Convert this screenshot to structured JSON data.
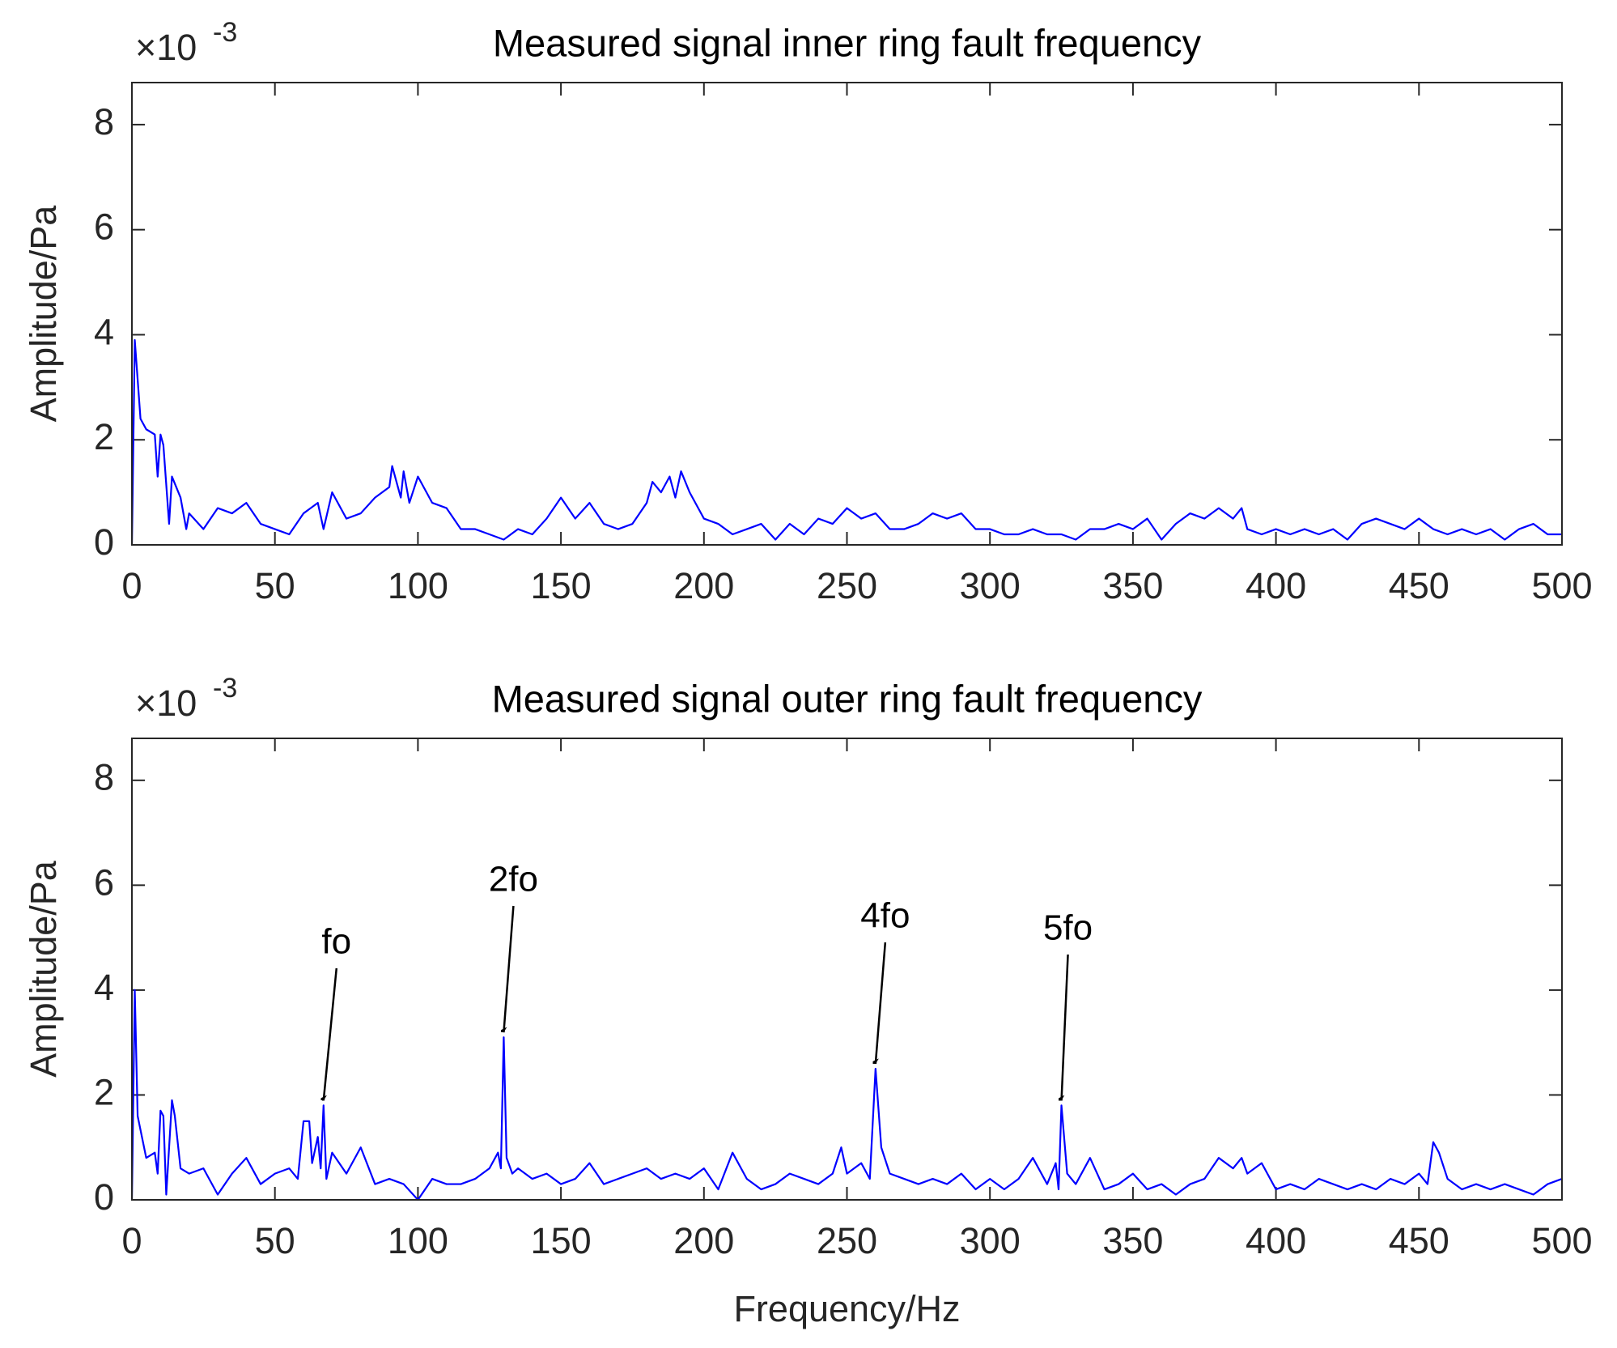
{
  "chart_data": [
    {
      "type": "line",
      "title": "Measured signal inner ring fault frequency",
      "ylabel": "Amplitude/Pa",
      "y_exponent": {
        "base": "×10",
        "exponent": "-3"
      },
      "xlim": [
        0,
        500
      ],
      "ylim": [
        0,
        8.8
      ],
      "xticks": [
        0,
        50,
        100,
        150,
        200,
        250,
        300,
        350,
        400,
        450,
        500
      ],
      "yticks": [
        0,
        2,
        4,
        6,
        8
      ],
      "color": "#0000ff",
      "x": [
        0,
        1,
        3,
        5,
        8,
        9,
        10,
        11,
        13,
        14,
        17,
        19,
        20,
        25,
        30,
        35,
        40,
        45,
        50,
        55,
        60,
        65,
        67,
        70,
        75,
        80,
        85,
        90,
        91,
        94,
        95,
        97,
        100,
        105,
        110,
        115,
        120,
        125,
        130,
        135,
        140,
        145,
        150,
        155,
        160,
        165,
        170,
        175,
        180,
        182,
        185,
        188,
        190,
        192,
        195,
        200,
        205,
        210,
        215,
        220,
        225,
        230,
        235,
        240,
        245,
        250,
        255,
        260,
        265,
        270,
        275,
        280,
        285,
        290,
        295,
        300,
        305,
        310,
        315,
        320,
        325,
        330,
        335,
        340,
        345,
        350,
        355,
        360,
        365,
        370,
        375,
        380,
        385,
        388,
        390,
        395,
        400,
        405,
        410,
        415,
        420,
        425,
        430,
        435,
        440,
        445,
        450,
        455,
        460,
        465,
        470,
        475,
        480,
        485,
        490,
        495,
        500
      ],
      "values": [
        0,
        3.9,
        2.4,
        2.2,
        2.1,
        1.3,
        2.1,
        1.9,
        0.4,
        1.3,
        0.9,
        0.3,
        0.6,
        0.3,
        0.7,
        0.6,
        0.8,
        0.4,
        0.3,
        0.2,
        0.6,
        0.8,
        0.3,
        1.0,
        0.5,
        0.6,
        0.9,
        1.1,
        1.5,
        0.9,
        1.4,
        0.8,
        1.3,
        0.8,
        0.7,
        0.3,
        0.3,
        0.2,
        0.1,
        0.3,
        0.2,
        0.5,
        0.9,
        0.5,
        0.8,
        0.4,
        0.3,
        0.4,
        0.8,
        1.2,
        1.0,
        1.3,
        0.9,
        1.4,
        1.0,
        0.5,
        0.4,
        0.2,
        0.3,
        0.4,
        0.1,
        0.4,
        0.2,
        0.5,
        0.4,
        0.7,
        0.5,
        0.6,
        0.3,
        0.3,
        0.4,
        0.6,
        0.5,
        0.6,
        0.3,
        0.3,
        0.2,
        0.2,
        0.3,
        0.2,
        0.2,
        0.1,
        0.3,
        0.3,
        0.4,
        0.3,
        0.5,
        0.1,
        0.4,
        0.6,
        0.5,
        0.7,
        0.5,
        0.7,
        0.3,
        0.2,
        0.3,
        0.2,
        0.3,
        0.2,
        0.3,
        0.1,
        0.4,
        0.5,
        0.4,
        0.3,
        0.5,
        0.3,
        0.2,
        0.3,
        0.2,
        0.3,
        0.1,
        0.3,
        0.4,
        0.2,
        0.2
      ]
    },
    {
      "type": "line",
      "title": "Measured signal outer ring fault frequency",
      "ylabel": "Amplitude/Pa",
      "xlabel": "Frequency/Hz",
      "y_exponent": {
        "base": "×10",
        "exponent": "-3"
      },
      "xlim": [
        0,
        500
      ],
      "ylim": [
        0,
        8.8
      ],
      "xticks": [
        0,
        50,
        100,
        150,
        200,
        250,
        300,
        350,
        400,
        450,
        500
      ],
      "yticks": [
        0,
        2,
        4,
        6,
        8
      ],
      "color": "#0000ff",
      "x": [
        0,
        1,
        2,
        5,
        8,
        9,
        10,
        11,
        12,
        14,
        15,
        17,
        20,
        25,
        30,
        35,
        40,
        45,
        50,
        55,
        58,
        60,
        62,
        63,
        65,
        66,
        67,
        68,
        70,
        75,
        80,
        85,
        90,
        95,
        100,
        105,
        110,
        115,
        120,
        125,
        128,
        129,
        130,
        131,
        133,
        135,
        140,
        145,
        150,
        155,
        160,
        165,
        170,
        175,
        180,
        185,
        190,
        195,
        200,
        205,
        210,
        215,
        220,
        225,
        230,
        235,
        240,
        245,
        248,
        250,
        255,
        258,
        260,
        262,
        265,
        270,
        275,
        280,
        285,
        290,
        295,
        300,
        305,
        310,
        315,
        320,
        323,
        324,
        325,
        327,
        330,
        335,
        340,
        345,
        350,
        355,
        360,
        365,
        370,
        375,
        380,
        385,
        388,
        390,
        395,
        400,
        405,
        410,
        415,
        420,
        425,
        430,
        435,
        440,
        445,
        450,
        453,
        455,
        457,
        460,
        465,
        470,
        475,
        480,
        485,
        490,
        495,
        500
      ],
      "values": [
        0,
        4.0,
        1.6,
        0.8,
        0.9,
        0.5,
        1.7,
        1.6,
        0.1,
        1.9,
        1.6,
        0.6,
        0.5,
        0.6,
        0.1,
        0.5,
        0.8,
        0.3,
        0.5,
        0.6,
        0.4,
        1.5,
        1.5,
        0.7,
        1.2,
        0.6,
        1.8,
        0.4,
        0.9,
        0.5,
        1.0,
        0.3,
        0.4,
        0.3,
        0.0,
        0.4,
        0.3,
        0.3,
        0.4,
        0.6,
        0.9,
        0.6,
        3.1,
        0.8,
        0.5,
        0.6,
        0.4,
        0.5,
        0.3,
        0.4,
        0.7,
        0.3,
        0.4,
        0.5,
        0.6,
        0.4,
        0.5,
        0.4,
        0.6,
        0.2,
        0.9,
        0.4,
        0.2,
        0.3,
        0.5,
        0.4,
        0.3,
        0.5,
        1.0,
        0.5,
        0.7,
        0.4,
        2.5,
        1.0,
        0.5,
        0.4,
        0.3,
        0.4,
        0.3,
        0.5,
        0.2,
        0.4,
        0.2,
        0.4,
        0.8,
        0.3,
        0.7,
        0.2,
        1.8,
        0.5,
        0.3,
        0.8,
        0.2,
        0.3,
        0.5,
        0.2,
        0.3,
        0.1,
        0.3,
        0.4,
        0.8,
        0.6,
        0.8,
        0.5,
        0.7,
        0.2,
        0.3,
        0.2,
        0.4,
        0.3,
        0.2,
        0.3,
        0.2,
        0.4,
        0.3,
        0.5,
        0.3,
        1.1,
        0.9,
        0.4,
        0.2,
        0.3,
        0.2,
        0.3,
        0.2,
        0.1,
        0.3,
        0.4
      ],
      "annotations": [
        {
          "text": "fo",
          "x": 67,
          "y": 1.8
        },
        {
          "text": "2fo",
          "x": 130,
          "y": 3.1
        },
        {
          "text": "4fo",
          "x": 260,
          "y": 2.5
        },
        {
          "text": "5fo",
          "x": 325,
          "y": 1.8
        }
      ]
    }
  ]
}
